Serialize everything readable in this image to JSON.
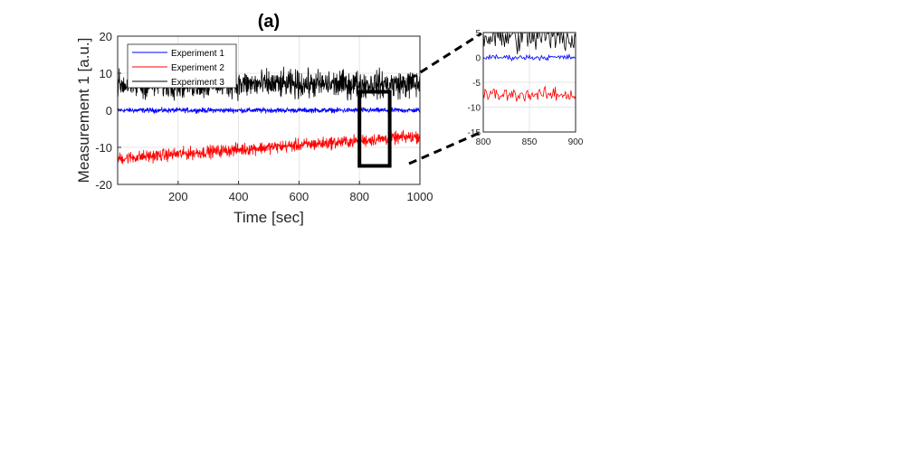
{
  "chart_data": [
    {
      "type": "line",
      "title": "(a)",
      "xlabel": "Time [sec]",
      "ylabel": "Measurement 1 [a.u.]",
      "xlim": [
        0,
        1000
      ],
      "ylim": [
        -20,
        20
      ],
      "xticks": [
        200,
        400,
        600,
        800,
        1000
      ],
      "yticks": [
        -20,
        -10,
        0,
        10,
        20
      ],
      "grid": true,
      "legend_location": "top-left",
      "series": [
        {
          "name": "Experiment 1",
          "color": "#0000ff",
          "mean_start": 0,
          "mean_end": 0,
          "noise_amplitude": 1.0
        },
        {
          "name": "Experiment 2",
          "color": "#ff0000",
          "mean_start": -13,
          "mean_end": -7,
          "noise_amplitude": 2.5
        },
        {
          "name": "Experiment 3",
          "color": "#000000",
          "mean_start": 7,
          "mean_end": 7,
          "noise_amplitude": 5.5
        }
      ],
      "zoom_box": {
        "x": [
          800,
          900
        ],
        "y": [
          -15,
          5
        ]
      }
    },
    {
      "type": "line",
      "title": "",
      "xlim": [
        800,
        900
      ],
      "ylim": [
        -15,
        5
      ],
      "xticks": [
        800,
        850,
        900
      ],
      "yticks": [
        -15,
        -10,
        -5,
        0,
        5
      ],
      "grid": true,
      "series": [
        {
          "color": "#0000ff",
          "mean": 0,
          "noise_amplitude": 0.8
        },
        {
          "color": "#ff0000",
          "mean": -7.5,
          "noise_amplitude": 2.0
        },
        {
          "color": "#000000",
          "mean": 4,
          "noise_amplitude": 4.5
        }
      ]
    }
  ]
}
